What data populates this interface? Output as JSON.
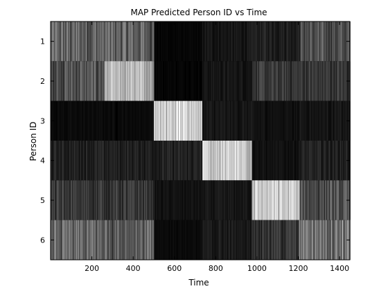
{
  "chart_data": {
    "type": "heatmap",
    "title": "MAP Predicted Person ID vs Time",
    "xlabel": "Time",
    "ylabel": "Person ID",
    "xlim": [
      0,
      1450
    ],
    "x_ticks": [
      200,
      400,
      600,
      800,
      1000,
      1200,
      1400
    ],
    "x_tick_labels": [
      "200",
      "400",
      "600",
      "800",
      "1000",
      "1200",
      "1400"
    ],
    "y_categories": [
      "1",
      "2",
      "3",
      "4",
      "5",
      "6"
    ],
    "colormap": "gray",
    "grid": false,
    "colorbar": false,
    "time_segments": [
      {
        "start": 0,
        "end": 490,
        "intensity": [
          0.45,
          0.38,
          0.05,
          0.15,
          0.25,
          0.45
        ]
      },
      {
        "start": 490,
        "end": 500,
        "intensity": [
          0.4,
          0.6,
          0.1,
          0.15,
          0.25,
          0.35
        ]
      },
      {
        "start": 500,
        "end": 735,
        "intensity": [
          0.03,
          0.03,
          0.9,
          0.15,
          0.08,
          0.05
        ]
      },
      {
        "start": 735,
        "end": 975,
        "intensity": [
          0.1,
          0.1,
          0.1,
          0.85,
          0.1,
          0.12
        ]
      },
      {
        "start": 975,
        "end": 1205,
        "intensity": [
          0.15,
          0.25,
          0.08,
          0.08,
          0.85,
          0.25
        ]
      },
      {
        "start": 1205,
        "end": 1450,
        "intensity": [
          0.35,
          0.25,
          0.1,
          0.15,
          0.35,
          0.55
        ]
      }
    ],
    "bright_regions": [
      {
        "person": "2",
        "start": 260,
        "end": 490,
        "intensity": 0.75
      },
      {
        "person": "4",
        "start": 735,
        "end": 975,
        "intensity": 0.85
      },
      {
        "person": "5",
        "start": 975,
        "end": 1205,
        "intensity": 0.85
      }
    ]
  }
}
